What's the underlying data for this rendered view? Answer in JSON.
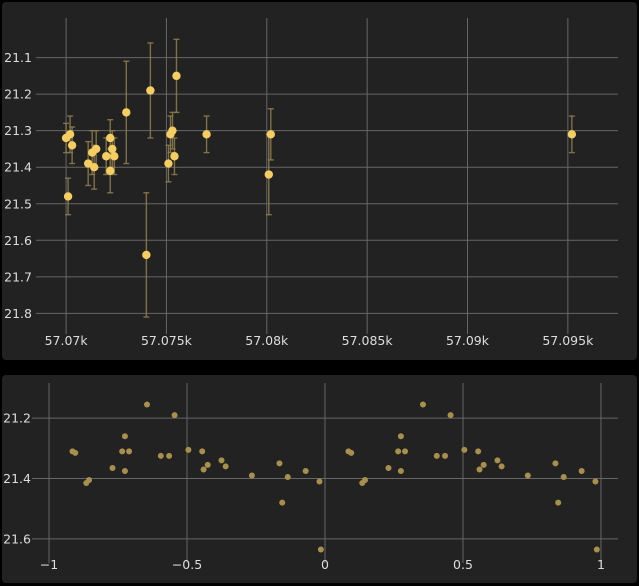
{
  "chart_data": [
    {
      "type": "scatter",
      "title": "",
      "xlabel": "",
      "ylabel": "",
      "y_inverted": true,
      "error_bars": true,
      "grid": true,
      "xlim": [
        57068.8,
        57097.2
      ],
      "ylim": [
        21.03,
        21.84
      ],
      "x_ticks": [
        57070,
        57075,
        57080,
        57085,
        57090,
        57095
      ],
      "x_tick_labels": [
        "57.07k",
        "57.075k",
        "57.08k",
        "57.085k",
        "57.09k",
        "57.095k"
      ],
      "y_ticks": [
        21.1,
        21.2,
        21.3,
        21.4,
        21.5,
        21.6,
        21.7,
        21.8
      ],
      "y_tick_labels": [
        "21.1",
        "21.2",
        "21.3",
        "21.4",
        "21.5",
        "21.6",
        "21.7",
        "21.8"
      ],
      "colors": {
        "marker": "#f5cd60",
        "error_bar": "#8a7a4a",
        "grid": "#666666",
        "panel": "#222222"
      },
      "points": [
        {
          "x": 57070.0,
          "y": 21.32,
          "err": 0.04
        },
        {
          "x": 57070.2,
          "y": 21.31,
          "err": 0.05
        },
        {
          "x": 57070.1,
          "y": 21.48,
          "err": 0.05
        },
        {
          "x": 57070.3,
          "y": 21.34,
          "err": 0.05
        },
        {
          "x": 57071.1,
          "y": 21.39,
          "err": 0.06
        },
        {
          "x": 57071.3,
          "y": 21.36,
          "err": 0.06
        },
        {
          "x": 57071.4,
          "y": 21.4,
          "err": 0.06
        },
        {
          "x": 57071.5,
          "y": 21.35,
          "err": 0.05
        },
        {
          "x": 57072.0,
          "y": 21.37,
          "err": 0.05
        },
        {
          "x": 57072.2,
          "y": 21.41,
          "err": 0.06
        },
        {
          "x": 57072.2,
          "y": 21.32,
          "err": 0.05
        },
        {
          "x": 57072.3,
          "y": 21.35,
          "err": 0.05
        },
        {
          "x": 57072.4,
          "y": 21.37,
          "err": 0.05
        },
        {
          "x": 57073.0,
          "y": 21.25,
          "err": 0.14
        },
        {
          "x": 57074.0,
          "y": 21.64,
          "err": 0.17
        },
        {
          "x": 57074.2,
          "y": 21.19,
          "err": 0.13
        },
        {
          "x": 57075.1,
          "y": 21.39,
          "err": 0.05
        },
        {
          "x": 57075.2,
          "y": 21.31,
          "err": 0.05
        },
        {
          "x": 57075.3,
          "y": 21.3,
          "err": 0.05
        },
        {
          "x": 57075.4,
          "y": 21.37,
          "err": 0.05
        },
        {
          "x": 57075.5,
          "y": 21.15,
          "err": 0.1
        },
        {
          "x": 57077.0,
          "y": 21.31,
          "err": 0.05
        },
        {
          "x": 57080.1,
          "y": 21.42,
          "err": 0.11
        },
        {
          "x": 57080.2,
          "y": 21.31,
          "err": 0.07
        },
        {
          "x": 57095.2,
          "y": 21.31,
          "err": 0.05
        }
      ]
    },
    {
      "type": "scatter",
      "title": "",
      "xlabel": "",
      "ylabel": "",
      "y_inverted": true,
      "grid": true,
      "xlim": [
        -1.04,
        1.04
      ],
      "ylim": [
        21.13,
        21.66
      ],
      "x_ticks": [
        -1,
        -0.5,
        0,
        0.5,
        1
      ],
      "x_tick_labels": [
        "−1",
        "−0.5",
        "0",
        "0.5",
        "1"
      ],
      "y_ticks": [
        21.2,
        21.4,
        21.6
      ],
      "y_tick_labels": [
        "21.2",
        "21.4",
        "21.6"
      ],
      "colors": {
        "marker": "#a8904c",
        "grid": "#666666",
        "panel": "#222222"
      },
      "points": [
        {
          "x": -0.915,
          "y": 21.31
        },
        {
          "x": -0.905,
          "y": 21.315
        },
        {
          "x": -0.865,
          "y": 21.415
        },
        {
          "x": -0.855,
          "y": 21.405
        },
        {
          "x": -0.77,
          "y": 21.365
        },
        {
          "x": -0.735,
          "y": 21.31
        },
        {
          "x": -0.725,
          "y": 21.26
        },
        {
          "x": -0.725,
          "y": 21.375
        },
        {
          "x": -0.71,
          "y": 21.31
        },
        {
          "x": -0.645,
          "y": 21.155
        },
        {
          "x": -0.595,
          "y": 21.325
        },
        {
          "x": -0.565,
          "y": 21.325
        },
        {
          "x": -0.545,
          "y": 21.19
        },
        {
          "x": -0.495,
          "y": 21.305
        },
        {
          "x": -0.445,
          "y": 21.31
        },
        {
          "x": -0.44,
          "y": 21.37
        },
        {
          "x": -0.425,
          "y": 21.355
        },
        {
          "x": -0.375,
          "y": 21.34
        },
        {
          "x": -0.36,
          "y": 21.36
        },
        {
          "x": -0.265,
          "y": 21.39
        },
        {
          "x": -0.165,
          "y": 21.35
        },
        {
          "x": -0.155,
          "y": 21.48
        },
        {
          "x": -0.135,
          "y": 21.395
        },
        {
          "x": -0.07,
          "y": 21.375
        },
        {
          "x": -0.02,
          "y": 21.41
        },
        {
          "x": -0.015,
          "y": 21.635
        },
        {
          "x": 0.085,
          "y": 21.31
        },
        {
          "x": 0.095,
          "y": 21.315
        },
        {
          "x": 0.135,
          "y": 21.415
        },
        {
          "x": 0.145,
          "y": 21.405
        },
        {
          "x": 0.23,
          "y": 21.365
        },
        {
          "x": 0.265,
          "y": 21.31
        },
        {
          "x": 0.275,
          "y": 21.26
        },
        {
          "x": 0.275,
          "y": 21.375
        },
        {
          "x": 0.29,
          "y": 21.31
        },
        {
          "x": 0.355,
          "y": 21.155
        },
        {
          "x": 0.405,
          "y": 21.325
        },
        {
          "x": 0.435,
          "y": 21.325
        },
        {
          "x": 0.455,
          "y": 21.19
        },
        {
          "x": 0.505,
          "y": 21.305
        },
        {
          "x": 0.555,
          "y": 21.31
        },
        {
          "x": 0.56,
          "y": 21.37
        },
        {
          "x": 0.575,
          "y": 21.355
        },
        {
          "x": 0.625,
          "y": 21.34
        },
        {
          "x": 0.64,
          "y": 21.36
        },
        {
          "x": 0.735,
          "y": 21.39
        },
        {
          "x": 0.835,
          "y": 21.35
        },
        {
          "x": 0.845,
          "y": 21.48
        },
        {
          "x": 0.865,
          "y": 21.395
        },
        {
          "x": 0.93,
          "y": 21.375
        },
        {
          "x": 0.98,
          "y": 21.41
        },
        {
          "x": 0.985,
          "y": 21.635
        }
      ]
    }
  ]
}
